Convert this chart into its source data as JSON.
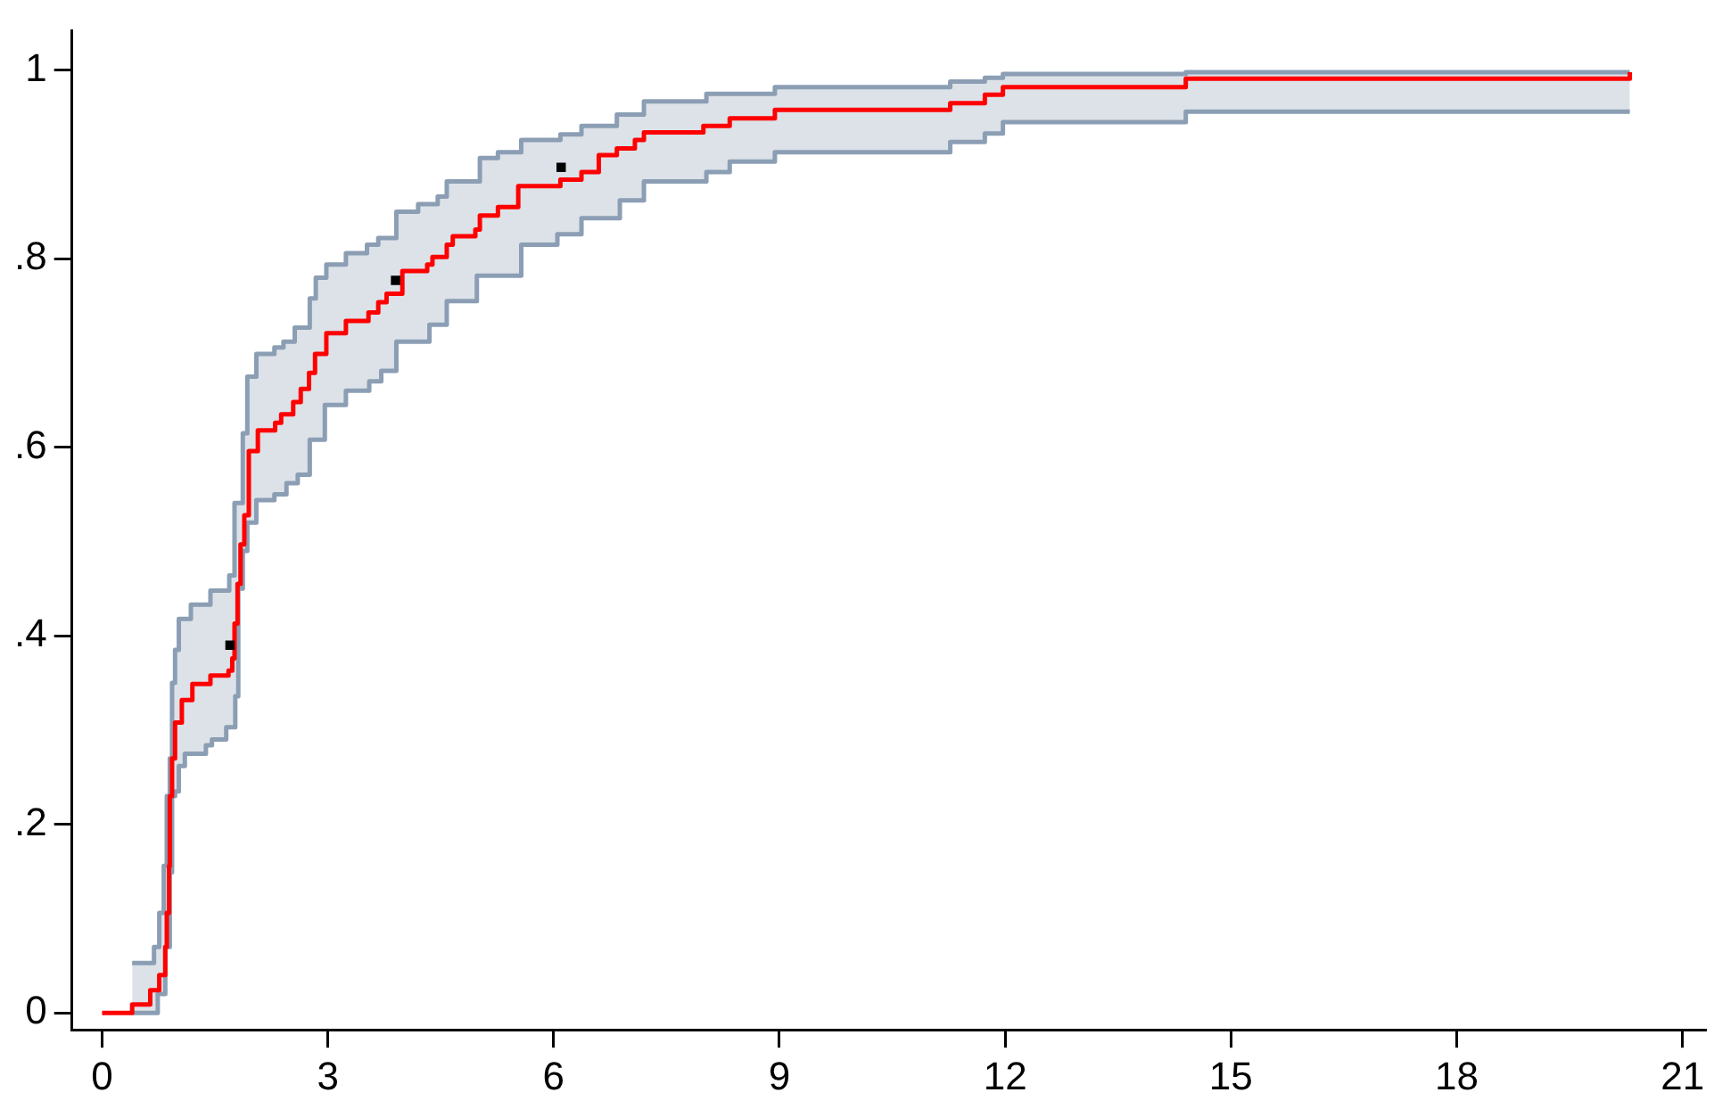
{
  "chart_data": {
    "type": "step",
    "xlim": [
      -0.4,
      21.3
    ],
    "ylim": [
      -0.018,
      1.042
    ],
    "xticks": [
      0,
      3,
      6,
      9,
      12,
      15,
      18,
      21
    ],
    "yticks": [
      0,
      {
        "value": 0.2,
        "label": ".2"
      },
      {
        "value": 0.4,
        "label": ".4"
      },
      {
        "value": 0.6,
        "label": ".6"
      },
      {
        "value": 0.8,
        "label": ".8"
      },
      1
    ],
    "grid": false,
    "legend": false,
    "x": [
      0,
      0.4,
      0.64,
      0.69,
      0.74,
      0.76,
      0.82,
      0.84,
      0.86,
      0.89,
      0.9,
      0.93,
      0.97,
      1.02,
      1.06,
      1.1,
      1.18,
      1.2,
      1.38,
      1.44,
      1.46,
      1.65,
      1.68,
      1.69,
      1.73,
      1.76,
      1.77,
      1.8,
      1.81,
      1.84,
      1.87,
      1.89,
      1.93,
      1.95,
      2.05,
      2.07,
      2.29,
      2.3,
      2.38,
      2.41,
      2.45,
      2.54,
      2.56,
      2.6,
      2.64,
      2.75,
      2.76,
      2.83,
      2.84,
      2.96,
      2.98,
      3.24,
      3.52,
      3.54,
      3.55,
      3.67,
      3.71,
      3.78,
      3.91,
      3.99,
      4.2,
      4.32,
      4.35,
      4.39,
      4.46,
      4.58,
      4.66,
      4.96,
      4.98,
      5.02,
      5.26,
      5.53,
      5.57,
      6.05,
      6.09,
      6.37,
      6.6,
      6.84,
      6.88,
      7.08,
      7.2,
      7.99,
      8.03,
      8.34,
      8.94,
      11.27,
      11.73,
      11.97,
      14.4,
      20.3
    ],
    "series": [
      {
        "color": "#8b9eb4",
        "values": [
          null,
          0,
          0,
          0,
          0.02,
          0.02,
          0.02,
          0.07,
          0.07,
          0.07,
          0.149,
          0.23,
          0.235,
          0.262,
          0.262,
          0.275,
          0.275,
          0.275,
          0.284,
          0.284,
          0.29,
          0.303,
          0.303,
          0.303,
          0.303,
          0.303,
          0.336,
          0.336,
          0.45,
          0.45,
          0.49,
          0.49,
          0.52,
          0.52,
          0.544,
          0.544,
          0.55,
          0.55,
          0.55,
          0.55,
          0.562,
          0.562,
          0.562,
          0.571,
          0.571,
          0.571,
          0.608,
          0.608,
          0.608,
          0.645,
          0.645,
          0.66,
          0.66,
          0.66,
          0.67,
          0.67,
          0.681,
          0.681,
          0.712,
          0.712,
          0.712,
          0.712,
          0.73,
          0.73,
          0.73,
          0.755,
          0.755,
          0.755,
          0.782,
          0.782,
          0.782,
          0.782,
          0.815,
          0.826,
          0.826,
          0.843,
          0.843,
          0.843,
          0.862,
          0.862,
          0.882,
          0.882,
          0.892,
          0.903,
          0.913,
          0.924,
          0.933,
          0.945,
          0.956,
          0.956
        ]
      },
      {
        "color": "#8b9eb4",
        "values": [
          null,
          0.053,
          0.053,
          0.07,
          0.07,
          0.106,
          0.156,
          0.156,
          0.23,
          0.23,
          0.27,
          0.35,
          0.385,
          0.418,
          0.418,
          0.418,
          0.433,
          0.433,
          0.433,
          0.448,
          0.448,
          0.448,
          0.448,
          0.464,
          0.464,
          0.541,
          0.541,
          0.541,
          0.541,
          0.541,
          0.615,
          0.615,
          0.675,
          0.675,
          0.699,
          0.699,
          0.706,
          0.706,
          0.706,
          0.712,
          0.712,
          0.712,
          0.727,
          0.727,
          0.727,
          0.727,
          0.758,
          0.758,
          0.78,
          0.78,
          0.794,
          0.806,
          0.815,
          0.815,
          0.815,
          0.822,
          0.822,
          0.822,
          0.85,
          0.85,
          0.858,
          0.858,
          0.858,
          0.858,
          0.866,
          0.882,
          0.882,
          0.882,
          0.882,
          0.907,
          0.913,
          0.913,
          0.926,
          0.926,
          0.932,
          0.941,
          0.941,
          0.953,
          0.953,
          0.953,
          0.967,
          0.967,
          0.975,
          0.975,
          0.982,
          0.988,
          0.992,
          0.996,
          0.998,
          0.998
        ]
      },
      {
        "color": "#ff0000",
        "values": [
          0,
          0.009,
          0.024,
          0.024,
          0.024,
          0.04,
          0.04,
          0.07,
          0.106,
          0.156,
          0.23,
          0.27,
          0.308,
          0.308,
          0.332,
          0.332,
          0.332,
          0.349,
          0.349,
          0.358,
          0.358,
          0.358,
          0.363,
          0.363,
          0.376,
          0.413,
          0.413,
          0.455,
          0.455,
          0.497,
          0.497,
          0.528,
          0.528,
          0.596,
          0.596,
          0.618,
          0.618,
          0.626,
          0.635,
          0.635,
          0.635,
          0.648,
          0.648,
          0.648,
          0.662,
          0.679,
          0.679,
          0.699,
          0.699,
          0.699,
          0.721,
          0.734,
          0.734,
          0.743,
          0.743,
          0.754,
          0.754,
          0.763,
          0.763,
          0.787,
          0.787,
          0.794,
          0.794,
          0.802,
          0.802,
          0.815,
          0.824,
          0.831,
          0.831,
          0.846,
          0.855,
          0.877,
          0.877,
          0.877,
          0.884,
          0.892,
          0.91,
          0.917,
          0.917,
          0.926,
          0.934,
          0.941,
          0.941,
          0.949,
          0.958,
          0.965,
          0.974,
          0.982,
          0.991,
          0.998
        ],
        "lower": [
          null,
          0,
          0,
          0,
          0.02,
          0.02,
          0.02,
          0.07,
          0.07,
          0.07,
          0.149,
          0.23,
          0.235,
          0.262,
          0.262,
          0.275,
          0.275,
          0.275,
          0.284,
          0.284,
          0.29,
          0.303,
          0.303,
          0.303,
          0.303,
          0.303,
          0.336,
          0.336,
          0.45,
          0.45,
          0.49,
          0.49,
          0.52,
          0.52,
          0.544,
          0.544,
          0.55,
          0.55,
          0.55,
          0.55,
          0.562,
          0.562,
          0.562,
          0.571,
          0.571,
          0.571,
          0.608,
          0.608,
          0.608,
          0.645,
          0.645,
          0.66,
          0.66,
          0.66,
          0.67,
          0.67,
          0.681,
          0.681,
          0.712,
          0.712,
          0.712,
          0.712,
          0.73,
          0.73,
          0.73,
          0.755,
          0.755,
          0.755,
          0.782,
          0.782,
          0.782,
          0.782,
          0.815,
          0.826,
          0.826,
          0.843,
          0.843,
          0.843,
          0.862,
          0.862,
          0.882,
          0.882,
          0.892,
          0.903,
          0.913,
          0.924,
          0.933,
          0.945,
          0.956,
          0.956
        ],
        "upper": [
          null,
          0.053,
          0.053,
          0.07,
          0.07,
          0.106,
          0.156,
          0.156,
          0.23,
          0.23,
          0.27,
          0.35,
          0.385,
          0.418,
          0.418,
          0.418,
          0.433,
          0.433,
          0.433,
          0.448,
          0.448,
          0.448,
          0.448,
          0.464,
          0.464,
          0.541,
          0.541,
          0.541,
          0.541,
          0.541,
          0.615,
          0.615,
          0.675,
          0.675,
          0.699,
          0.699,
          0.706,
          0.706,
          0.706,
          0.712,
          0.712,
          0.712,
          0.727,
          0.727,
          0.727,
          0.727,
          0.758,
          0.758,
          0.78,
          0.78,
          0.794,
          0.806,
          0.815,
          0.815,
          0.815,
          0.822,
          0.822,
          0.822,
          0.85,
          0.85,
          0.858,
          0.858,
          0.858,
          0.858,
          0.866,
          0.882,
          0.882,
          0.882,
          0.882,
          0.907,
          0.913,
          0.913,
          0.926,
          0.926,
          0.932,
          0.941,
          0.941,
          0.953,
          0.953,
          0.953,
          0.967,
          0.967,
          0.975,
          0.975,
          0.982,
          0.988,
          0.992,
          0.996,
          0.998,
          0.998
        ]
      },
      {
        "type": "scatter",
        "color": "#000000",
        "marker": "square",
        "x": [
          1.7,
          3.9,
          6.1
        ],
        "values": [
          0.39,
          0.777,
          0.897
        ]
      }
    ]
  }
}
